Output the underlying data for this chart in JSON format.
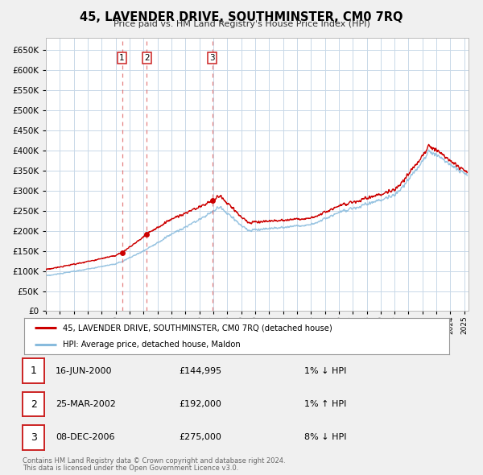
{
  "title": "45, LAVENDER DRIVE, SOUTHMINSTER, CM0 7RQ",
  "subtitle": "Price paid vs. HM Land Registry's House Price Index (HPI)",
  "red_label": "45, LAVENDER DRIVE, SOUTHMINSTER, CM0 7RQ (detached house)",
  "blue_label": "HPI: Average price, detached house, Maldon",
  "footer1": "Contains HM Land Registry data © Crown copyright and database right 2024.",
  "footer2": "This data is licensed under the Open Government Licence v3.0.",
  "transactions": [
    {
      "num": 1,
      "date": "16-JUN-2000",
      "price": "£144,995",
      "change": "1% ↓ HPI",
      "year": 2000.46,
      "value": 144995
    },
    {
      "num": 2,
      "date": "25-MAR-2002",
      "price": "£192,000",
      "change": "1% ↑ HPI",
      "year": 2002.23,
      "value": 192000
    },
    {
      "num": 3,
      "date": "08-DEC-2006",
      "price": "£275,000",
      "change": "8% ↓ HPI",
      "year": 2006.94,
      "value": 275000
    }
  ],
  "background_color": "#f0f0f0",
  "plot_bg_color": "#ffffff",
  "grid_color": "#c8d8e8",
  "red_color": "#cc0000",
  "blue_color": "#88bbdd",
  "vline_color": "#dd5555",
  "ylim": [
    0,
    680000
  ],
  "xlim_start": 1995.0,
  "xlim_end": 2025.3
}
